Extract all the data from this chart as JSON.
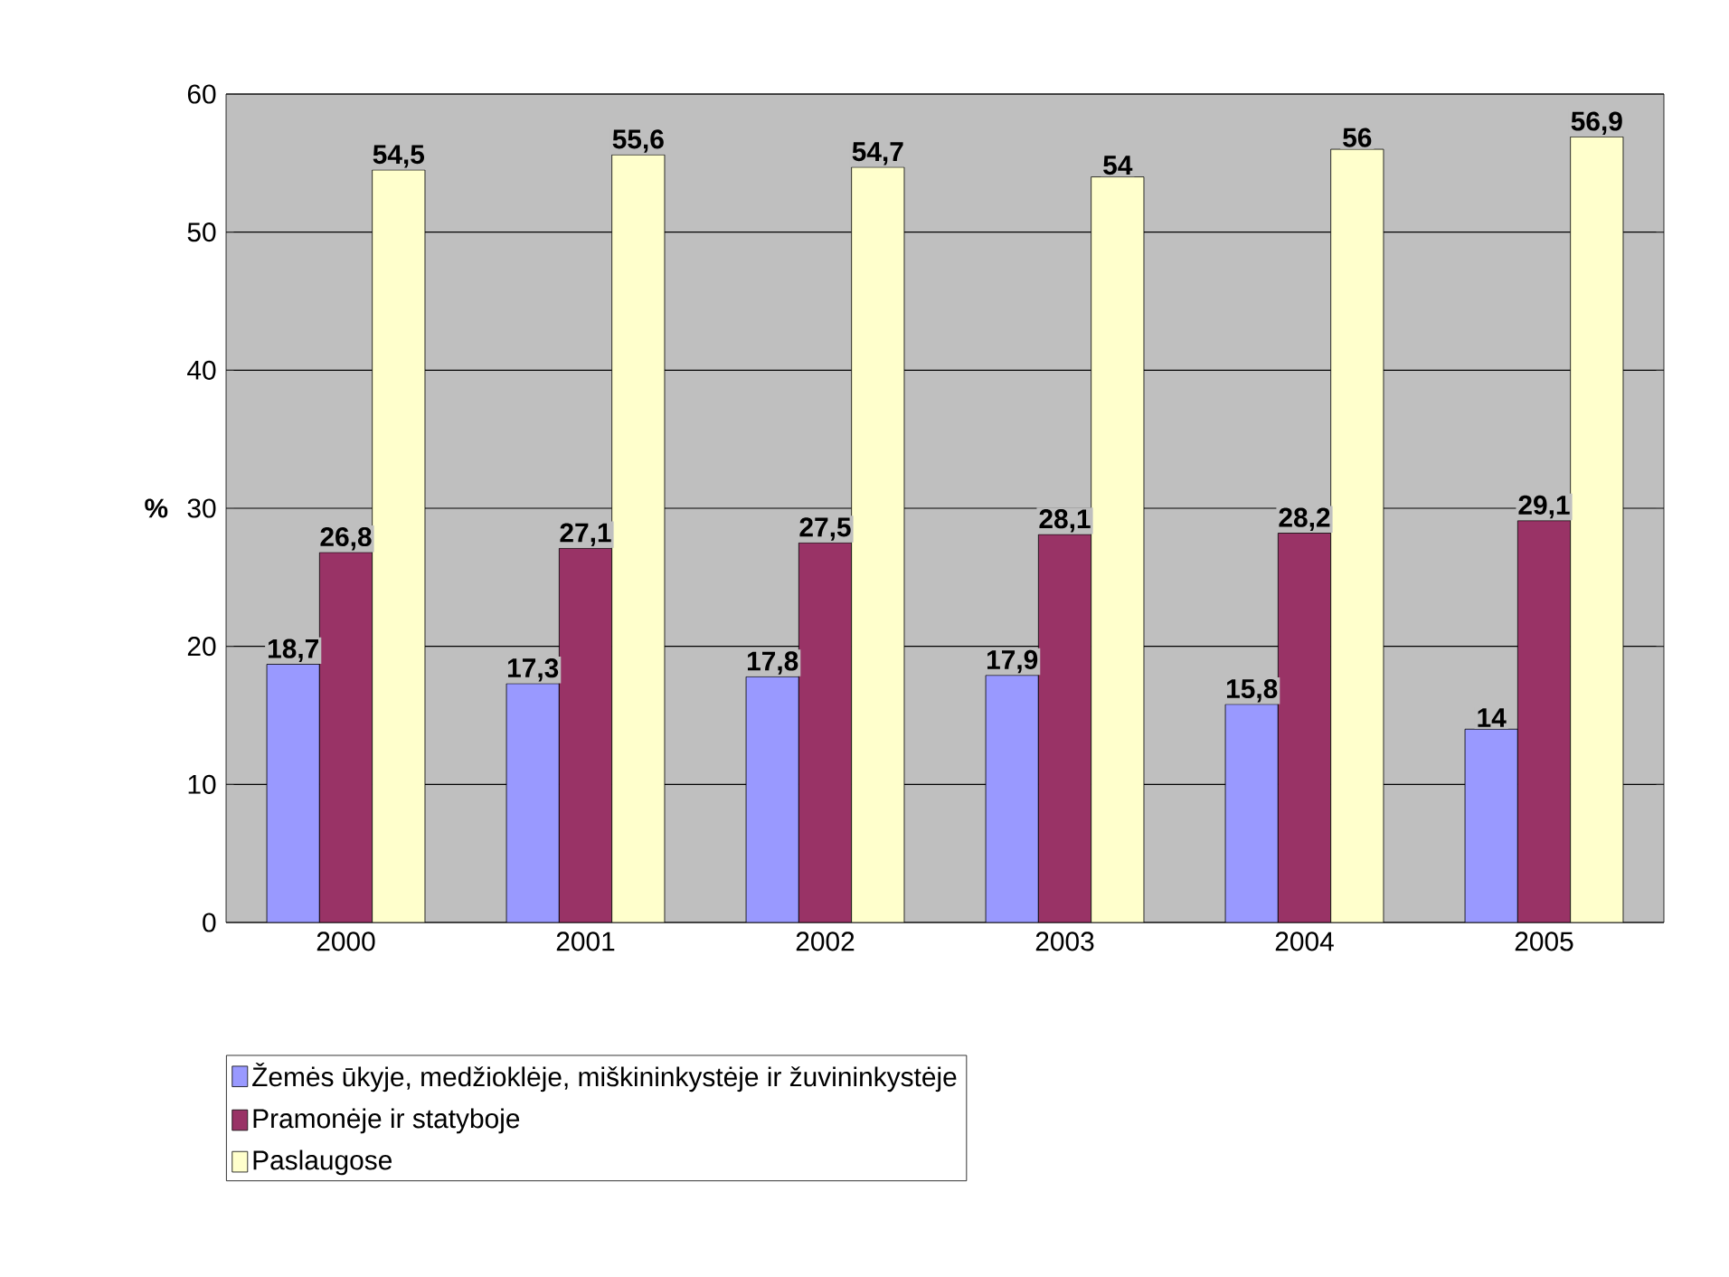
{
  "chart_data": {
    "type": "bar",
    "ylabel": "%",
    "categories": [
      "2000",
      "2001",
      "2002",
      "2003",
      "2004",
      "2005"
    ],
    "series": [
      {
        "name": "Žemės ūkyje, medžioklėje, miškininkystėje ir žuvininkystėje",
        "color": "#9999ff",
        "values": [
          18.7,
          17.3,
          17.8,
          17.9,
          15.8,
          14
        ],
        "value_labels": [
          "18,7",
          "17,3",
          "17,8",
          "17,9",
          "15,8",
          "14"
        ]
      },
      {
        "name": "Pramonėje ir statyboje",
        "color": "#993366",
        "values": [
          26.8,
          27.1,
          27.5,
          28.1,
          28.2,
          29.1
        ],
        "value_labels": [
          "26,8",
          "27,1",
          "27,5",
          "28,1",
          "28,2",
          "29,1"
        ]
      },
      {
        "name": "Paslaugose",
        "color": "#ffffcc",
        "values": [
          54.5,
          55.6,
          54.7,
          54,
          56,
          56.9
        ],
        "value_labels": [
          "54,5",
          "55,6",
          "54,7",
          "54",
          "56",
          "56,9"
        ]
      }
    ],
    "ylim": [
      0,
      60
    ],
    "yticks": [
      0,
      10,
      20,
      30,
      40,
      50,
      60
    ],
    "grid": "y",
    "legend": "bottom"
  }
}
